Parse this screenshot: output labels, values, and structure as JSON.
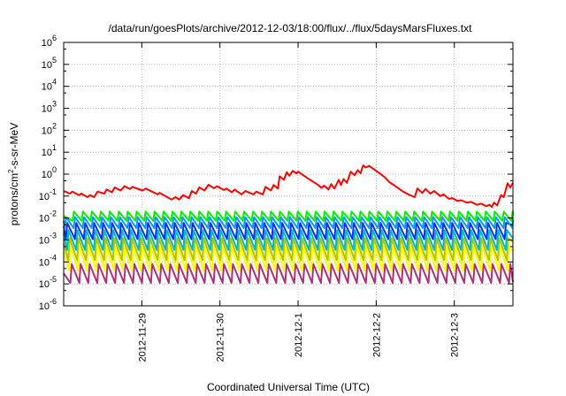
{
  "chart_data": {
    "type": "line",
    "title": "/data/run/goesPlots/archive/2012-12-03/18:00/flux/../flux/5daysMarsFluxes.txt",
    "xlabel": "Coordinated Universal Time (UTC)",
    "ylabel": "protons/cm²-s-sr-MeV",
    "ylabel_base": "protons/cm",
    "ylabel_sup": "2",
    "ylabel_rest": "-s-sr-MeV",
    "yscale": "log",
    "ylim": [
      1e-06,
      1000000.0
    ],
    "y_ticks": [
      {
        "value": 1e-06,
        "base": "10",
        "exp": "-6"
      },
      {
        "value": 1e-05,
        "base": "10",
        "exp": "-5"
      },
      {
        "value": 0.0001,
        "base": "10",
        "exp": "-4"
      },
      {
        "value": 0.001,
        "base": "10",
        "exp": "-3"
      },
      {
        "value": 0.01,
        "base": "10",
        "exp": "-2"
      },
      {
        "value": 0.1,
        "base": "10",
        "exp": "-1"
      },
      {
        "value": 1.0,
        "base": "10",
        "exp": "0"
      },
      {
        "value": 10.0,
        "base": "10",
        "exp": "1"
      },
      {
        "value": 100.0,
        "base": "10",
        "exp": "2"
      },
      {
        "value": 1000.0,
        "base": "10",
        "exp": "3"
      },
      {
        "value": 10000.0,
        "base": "10",
        "exp": "4"
      },
      {
        "value": 100000.0,
        "base": "10",
        "exp": "5"
      },
      {
        "value": 1000000.0,
        "base": "10",
        "exp": "6"
      }
    ],
    "xlim": [
      "2012-11-28T00:00",
      "2012-12-03T18:00"
    ],
    "x_ticks": [
      {
        "value": "2012-11-29T00:00",
        "label": "2012-11-29"
      },
      {
        "value": "2012-11-30T00:00",
        "label": "2012-11-30"
      },
      {
        "value": "2012-12-01T00:00",
        "label": "2012-12-1"
      },
      {
        "value": "2012-12-02T00:00",
        "label": "2012-12-2"
      },
      {
        "value": "2012-12-03T00:00",
        "label": "2012-12-3"
      }
    ],
    "grid": true,
    "series": [
      {
        "color": "#ff0000",
        "sawtooth": false,
        "values": [
          [
            "2012-11-28T00:00",
            0.17
          ],
          [
            "2012-11-28T01:55",
            0.13
          ],
          [
            "2012-11-28T02:40",
            0.16
          ],
          [
            "2012-11-28T04:40",
            0.11
          ],
          [
            "2012-11-28T05:25",
            0.13
          ],
          [
            "2012-11-28T07:20",
            0.09
          ],
          [
            "2012-11-28T08:05",
            0.11
          ],
          [
            "2012-11-28T09:20",
            0.09
          ],
          [
            "2012-11-28T10:25",
            0.16
          ],
          [
            "2012-11-28T12:30",
            0.13
          ],
          [
            "2012-11-28T13:10",
            0.2
          ],
          [
            "2012-11-28T14:50",
            0.15
          ],
          [
            "2012-11-28T15:40",
            0.25
          ],
          [
            "2012-11-28T17:30",
            0.18
          ],
          [
            "2012-11-28T18:40",
            0.28
          ],
          [
            "2012-11-28T20:25",
            0.21
          ],
          [
            "2012-11-28T21:10",
            0.26
          ],
          [
            "2012-11-29T00:10",
            0.18
          ],
          [
            "2012-11-29T01:15",
            0.22
          ],
          [
            "2012-11-29T04:50",
            0.12
          ],
          [
            "2012-11-29T05:30",
            0.14
          ],
          [
            "2012-11-29T09:10",
            0.07
          ],
          [
            "2012-11-29T10:20",
            0.09
          ],
          [
            "2012-11-29T11:30",
            0.07
          ],
          [
            "2012-11-29T12:40",
            0.11
          ],
          [
            "2012-11-29T14:30",
            0.08
          ],
          [
            "2012-11-29T15:20",
            0.17
          ],
          [
            "2012-11-29T16:40",
            0.13
          ],
          [
            "2012-11-29T17:40",
            0.25
          ],
          [
            "2012-11-29T19:15",
            0.18
          ],
          [
            "2012-11-29T20:30",
            0.33
          ],
          [
            "2012-11-29T22:10",
            0.23
          ],
          [
            "2012-11-29T23:10",
            0.28
          ],
          [
            "2012-11-30T01:10",
            0.19
          ],
          [
            "2012-11-30T02:00",
            0.22
          ],
          [
            "2012-11-30T03:40",
            0.15
          ],
          [
            "2012-11-30T04:30",
            0.2
          ],
          [
            "2012-11-30T06:40",
            0.12
          ],
          [
            "2012-11-30T07:50",
            0.17
          ],
          [
            "2012-11-30T10:20",
            0.12
          ],
          [
            "2012-11-30T11:10",
            0.16
          ],
          [
            "2012-11-30T13:10",
            0.12
          ],
          [
            "2012-11-30T14:00",
            0.26
          ],
          [
            "2012-11-30T15:40",
            0.18
          ],
          [
            "2012-11-30T16:30",
            0.32
          ],
          [
            "2012-11-30T17:50",
            0.22
          ],
          [
            "2012-11-30T18:20",
            0.8
          ],
          [
            "2012-11-30T19:40",
            0.55
          ],
          [
            "2012-11-30T20:30",
            1.2
          ],
          [
            "2012-11-30T21:20",
            0.85
          ],
          [
            "2012-11-30T22:20",
            1.4
          ],
          [
            "2012-11-30T23:30",
            1.1
          ],
          [
            "2012-12-01T00:00",
            1.3
          ],
          [
            "2012-12-01T03:40",
            0.55
          ],
          [
            "2012-12-01T05:50",
            0.35
          ],
          [
            "2012-12-01T07:10",
            0.24
          ],
          [
            "2012-12-01T08:00",
            0.3
          ],
          [
            "2012-12-01T09:20",
            0.2
          ],
          [
            "2012-12-01T10:10",
            0.35
          ],
          [
            "2012-12-01T11:10",
            0.22
          ],
          [
            "2012-12-01T12:30",
            0.55
          ],
          [
            "2012-12-01T13:10",
            0.32
          ],
          [
            "2012-12-01T14:00",
            0.6
          ],
          [
            "2012-12-01T15:00",
            0.4
          ],
          [
            "2012-12-01T16:10",
            1.3
          ],
          [
            "2012-12-01T17:20",
            0.9
          ],
          [
            "2012-12-01T18:20",
            1.5
          ],
          [
            "2012-12-01T19:10",
            1.1
          ],
          [
            "2012-12-01T20:00",
            2.5
          ],
          [
            "2012-12-01T20:50",
            2.0
          ],
          [
            "2012-12-01T21:50",
            2.4
          ],
          [
            "2012-12-02T00:20",
            1.3
          ],
          [
            "2012-12-02T02:30",
            0.75
          ],
          [
            "2012-12-02T04:10",
            0.42
          ],
          [
            "2012-12-02T05:40",
            0.3
          ],
          [
            "2012-12-02T08:00",
            0.17
          ],
          [
            "2012-12-02T09:50",
            0.12
          ],
          [
            "2012-12-02T11:50",
            0.09
          ],
          [
            "2012-12-02T12:40",
            0.22
          ],
          [
            "2012-12-02T14:10",
            0.14
          ],
          [
            "2012-12-02T15:10",
            0.21
          ],
          [
            "2012-12-02T16:40",
            0.13
          ],
          [
            "2012-12-02T17:50",
            0.17
          ],
          [
            "2012-12-02T19:40",
            0.1
          ],
          [
            "2012-12-02T20:40",
            0.12
          ],
          [
            "2012-12-02T22:20",
            0.075
          ],
          [
            "2012-12-02T23:20",
            0.08
          ],
          [
            "2012-12-03T01:00",
            0.06
          ],
          [
            "2012-12-03T02:00",
            0.065
          ],
          [
            "2012-12-03T04:00",
            0.05
          ],
          [
            "2012-12-03T05:00",
            0.055
          ],
          [
            "2012-12-03T07:00",
            0.04
          ],
          [
            "2012-12-03T08:10",
            0.045
          ],
          [
            "2012-12-03T09:50",
            0.035
          ],
          [
            "2012-12-03T10:50",
            0.04
          ],
          [
            "2012-12-03T11:30",
            0.032
          ],
          [
            "2012-12-03T12:10",
            0.05
          ],
          [
            "2012-12-03T13:10",
            0.038
          ],
          [
            "2012-12-03T14:20",
            0.11
          ],
          [
            "2012-12-03T15:10",
            0.09
          ],
          [
            "2012-12-03T16:20",
            0.38
          ],
          [
            "2012-12-03T17:10",
            0.25
          ],
          [
            "2012-12-03T18:00",
            0.4
          ]
        ]
      },
      {
        "color": "#00ee00",
        "sawtooth": true,
        "high": 0.02,
        "low": 0.0075,
        "phase": 0.0,
        "start_value": 0.0125,
        "end_value": 0.0135
      },
      {
        "color": "#0099ff",
        "sawtooth": true,
        "high": 0.011,
        "low": 0.0035,
        "phase": 0.12,
        "start_value": 0.0075,
        "end_value": 0.0085
      },
      {
        "color": "#0033ff",
        "sawtooth": true,
        "high": 0.006,
        "low": 0.0011,
        "phase": 0.25,
        "start_value": 0.0042,
        "end_value": 0.0048
      },
      {
        "color": "#00b8b8",
        "sawtooth": true,
        "high": 0.0028,
        "low": 0.00035,
        "phase": 0.38,
        "start_value": 0.0019,
        "end_value": 0.0012
      },
      {
        "color": "#b0c400",
        "sawtooth": true,
        "high": 0.0012,
        "low": 0.00012,
        "phase": 0.5,
        "start_value": 0.0007,
        "end_value": 0.0008
      },
      {
        "color": "#ffff00",
        "sawtooth": true,
        "high": 0.0005,
        "low": 4e-05,
        "phase": 0.62,
        "start_value": 0.0003,
        "end_value": 0.0003
      },
      {
        "color": "#aa3377",
        "sawtooth": true,
        "high": 8e-05,
        "low": 1.1e-05,
        "phase": 0.75,
        "start_value": 3e-05,
        "end_value": 1.2e-05
      }
    ],
    "sawtooth_period_hours": 2.75
  }
}
